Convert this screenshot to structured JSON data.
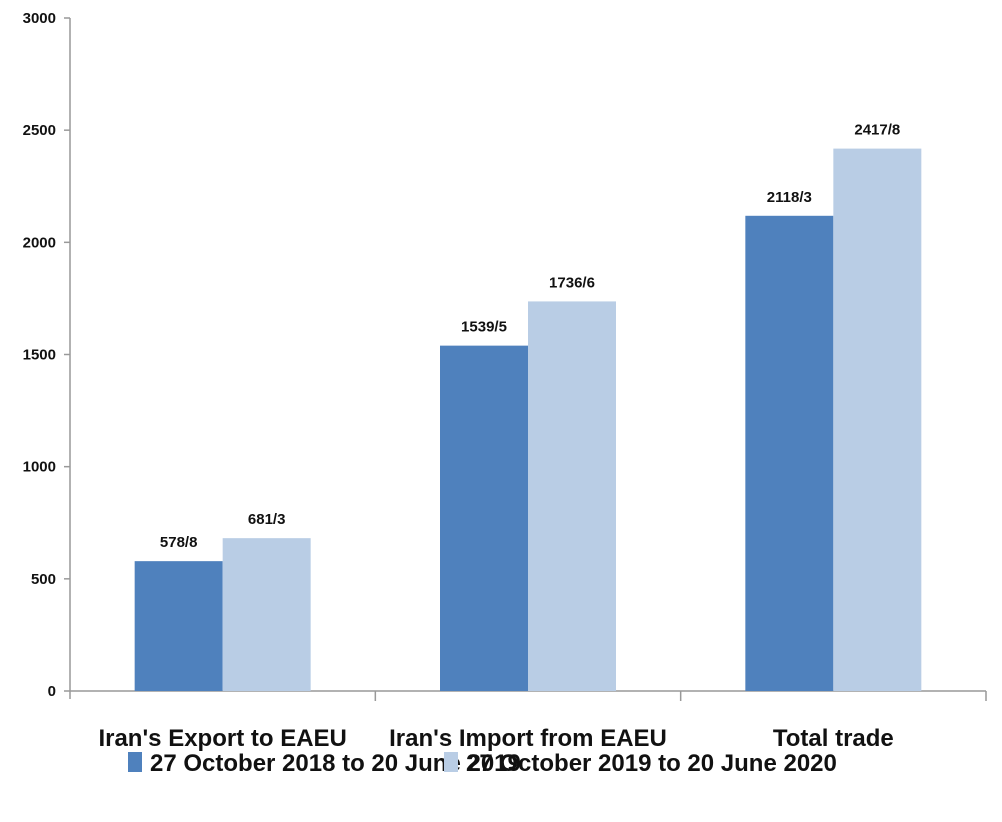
{
  "chart_data": {
    "type": "bar",
    "title": "",
    "xlabel": "",
    "ylabel": "",
    "ylim": [
      0,
      3000
    ],
    "yticks": [
      0,
      500,
      1000,
      1500,
      2000,
      2500,
      3000
    ],
    "ytick_labels": [
      "0",
      "500",
      "1000",
      "1500",
      "2000",
      "2500",
      "3000"
    ],
    "grid": false,
    "categories": [
      "Iran's Export to EAEU",
      "Iran's Import from EAEU",
      "Total trade"
    ],
    "series": [
      {
        "name": "27 October 2018 to 20 June 2019",
        "color": "#4F81BD",
        "values": [
          578.8,
          1539.5,
          2118.3
        ],
        "labels": [
          "578/8",
          "1539/5",
          "2118/3"
        ]
      },
      {
        "name": "27 October 2019 to 20 June 2020",
        "color": "#B9CDE5",
        "values": [
          681.3,
          1736.6,
          2417.8
        ],
        "labels": [
          "681/3",
          "1736/6",
          "2417/8"
        ]
      }
    ],
    "legend_position": "bottom"
  }
}
